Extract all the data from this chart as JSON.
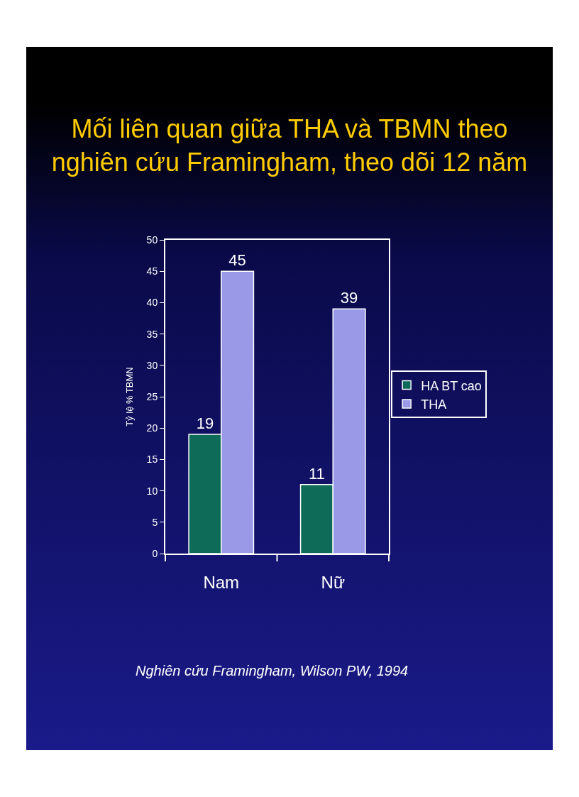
{
  "chart_data": {
    "type": "bar",
    "title": "Mối liên quan giữa THA và TBMN theo\nnghiên cứu Framingham, theo dõi 12 năm",
    "categories": [
      "Nam",
      "Nữ"
    ],
    "series": [
      {
        "name": "HA BT cao",
        "color": "#0d6b57",
        "values": [
          19,
          11
        ]
      },
      {
        "name": "THA",
        "color": "#9999e8",
        "values": [
          45,
          39
        ]
      }
    ],
    "ylabel": "Tỷ lệ % TBMN",
    "ylim": [
      0,
      50
    ],
    "yticks": [
      0,
      5,
      10,
      15,
      20,
      25,
      30,
      35,
      40,
      45,
      50
    ],
    "data_labels": true,
    "legend": "right",
    "grid": false,
    "annotations": [
      "Nghiên cứu Framingham, Wilson PW, 1994"
    ]
  }
}
